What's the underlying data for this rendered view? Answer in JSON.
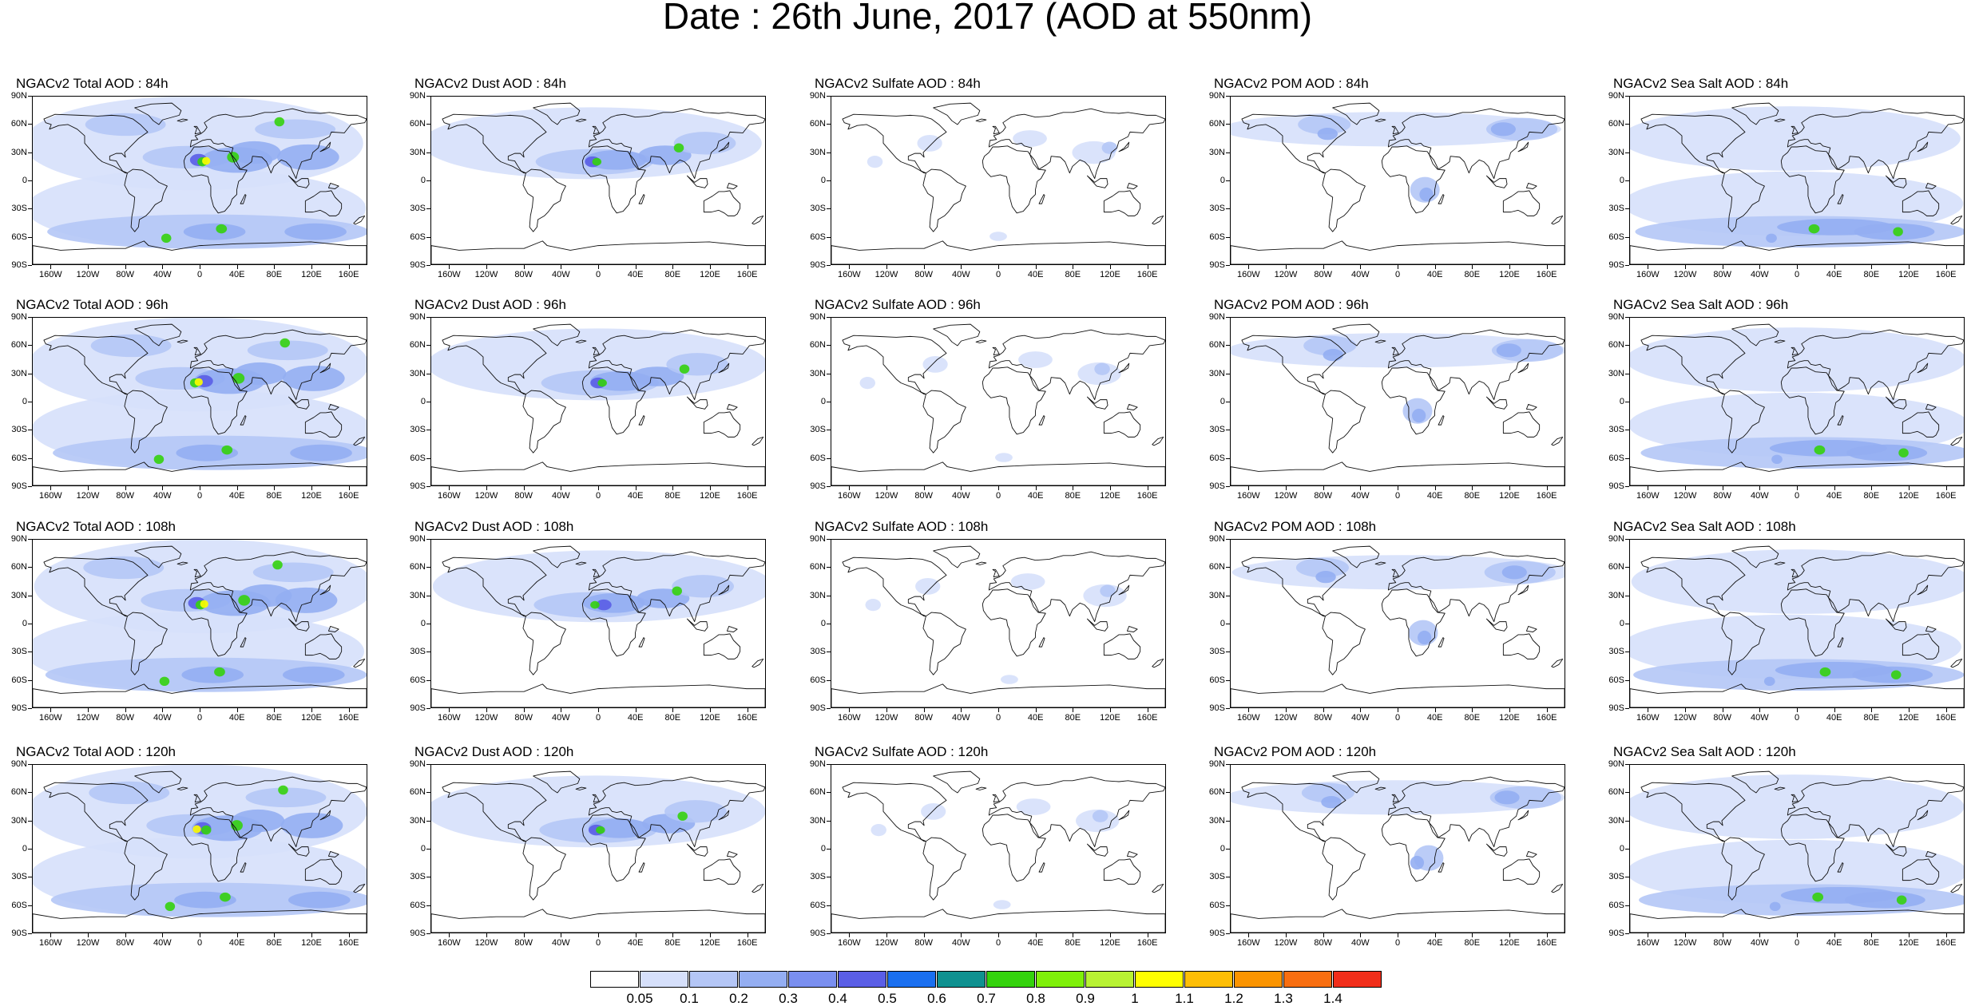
{
  "title": "Date : 26th June, 2017 (AOD at 550nm)",
  "lat_labels": [
    "90N",
    "60N",
    "30N",
    "0",
    "30S",
    "60S",
    "90S"
  ],
  "lon_labels": [
    "160W",
    "120W",
    "80W",
    "40W",
    "0",
    "40E",
    "80E",
    "120E",
    "160E"
  ],
  "species": [
    {
      "key": "total",
      "name": "Total"
    },
    {
      "key": "dust",
      "name": "Dust"
    },
    {
      "key": "sulfate",
      "name": "Sulfate"
    },
    {
      "key": "pom",
      "name": "POM"
    },
    {
      "key": "seasalt",
      "name": "Sea Salt"
    }
  ],
  "forecast_hours": [
    "84h",
    "96h",
    "108h",
    "120h"
  ],
  "panel_titles": [
    [
      "NGACv2 Total AOD : 84h",
      "NGACv2 Dust AOD : 84h",
      "NGACv2 Sulfate AOD : 84h",
      "NGACv2 POM AOD : 84h",
      "NGACv2 Sea Salt AOD : 84h"
    ],
    [
      "NGACv2 Total AOD : 96h",
      "NGACv2 Dust AOD : 96h",
      "NGACv2 Sulfate AOD : 96h",
      "NGACv2 POM AOD : 96h",
      "NGACv2 Sea Salt AOD : 96h"
    ],
    [
      "NGACv2 Total AOD : 108h",
      "NGACv2 Dust AOD : 108h",
      "NGACv2 Sulfate AOD : 108h",
      "NGACv2 POM AOD : 108h",
      "NGACv2 Sea Salt AOD : 108h"
    ],
    [
      "NGACv2 Total AOD : 120h",
      "NGACv2 Dust AOD : 120h",
      "NGACv2 Sulfate AOD : 120h",
      "NGACv2 POM AOD : 120h",
      "NGACv2 Sea Salt  AOD : 120h"
    ]
  ],
  "colorbar": {
    "labels": [
      "0.05",
      "0.1",
      "0.2",
      "0.3",
      "0.4",
      "0.5",
      "0.6",
      "0.7",
      "0.8",
      "0.9",
      "1",
      "1.1",
      "1.2",
      "1.3",
      "1.4"
    ],
    "colors": [
      "#ffffff",
      "#d6e0fb",
      "#b4c6f6",
      "#94aef2",
      "#7a8ff0",
      "#5a5ee6",
      "#1a6fef",
      "#0f9190",
      "#34d20d",
      "#7ff00a",
      "#b8f233",
      "#fefe00",
      "#fdbe06",
      "#fb9400",
      "#f86e10",
      "#f12e1a"
    ]
  },
  "map_colors": {
    "coast": "#111111",
    "light": "#d6e0fb",
    "light2": "#b4c6f6",
    "medium": "#94aef2",
    "strong": "#7a8ff0",
    "deep": "#5a5ee6",
    "green": "#34d20d",
    "yellow": "#fefe00",
    "orange": "#fdbe06"
  }
}
